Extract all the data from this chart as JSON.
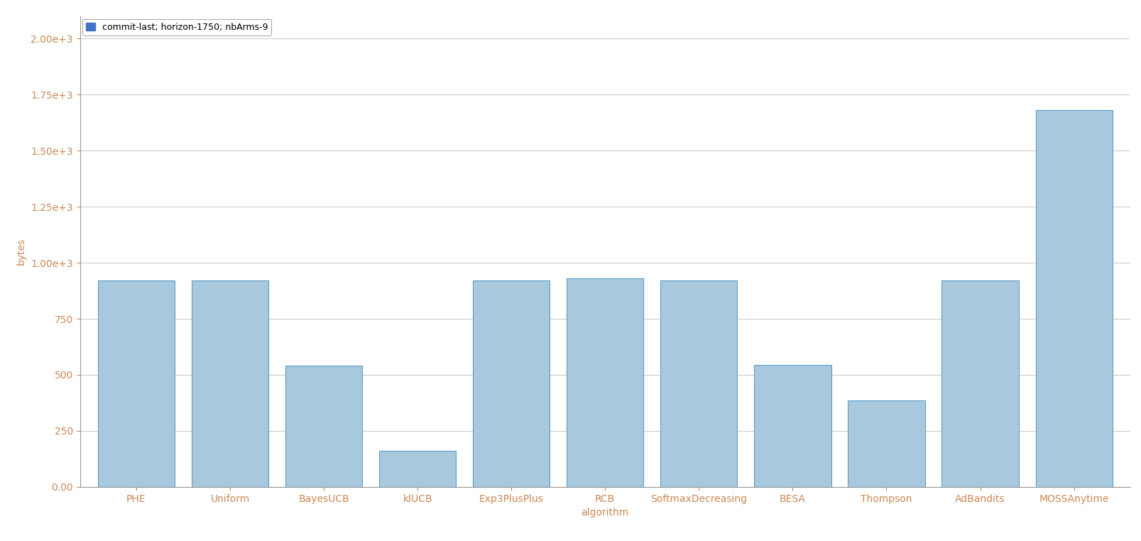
{
  "categories": [
    "PHE",
    "Uniform",
    "BayesUCB",
    "klUCB",
    "Exp3PlusPlus",
    "RCB",
    "SoftmaxDecreasing",
    "BESA",
    "Thompson",
    "AdBandits",
    "MOSSAnytime"
  ],
  "values": [
    920,
    920,
    540,
    160,
    920,
    930,
    920,
    545,
    385,
    920,
    1680
  ],
  "bar_color": "#a8c8de",
  "bar_edgecolor": "#5b9ec9",
  "xlabel": "algorithm",
  "ylabel": "bytes",
  "ylim": [
    0,
    2100
  ],
  "yticks": [
    0.0,
    250,
    500,
    750,
    1000,
    1250,
    1500,
    1750,
    2000
  ],
  "ytick_labels": [
    "0.00",
    "250",
    "500",
    "750",
    "1.00e+3",
    "1.25e+3",
    "1.50e+3",
    "1.75e+3",
    "2.00e+3"
  ],
  "legend_label": "commit-last; horizon-1750; nbArms-9",
  "legend_color": "#4472c4",
  "background_color": "#ffffff",
  "grid_color": "#cccccc",
  "bar_width": 0.82
}
